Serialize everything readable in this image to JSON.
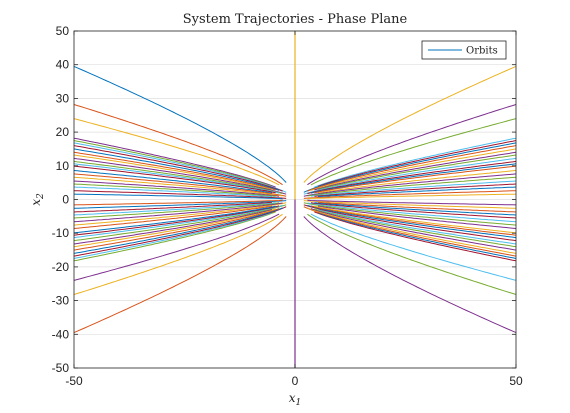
{
  "chart_data": {
    "type": "line",
    "title": "System Trajectories - Phase Plane",
    "xlabel": "x",
    "xlabel_sub": "1",
    "ylabel": "x",
    "ylabel_sub": "2",
    "xlim": [
      -50,
      50
    ],
    "ylim": [
      -50,
      50
    ],
    "xticks": [
      "-50",
      "0",
      "50"
    ],
    "yticks": [
      "-50",
      "-40",
      "-30",
      "-20",
      "-10",
      "0",
      "10",
      "20",
      "30",
      "40",
      "50"
    ],
    "grid": true,
    "legend": {
      "position": "top-right",
      "entries": [
        "Orbits"
      ]
    },
    "colors": [
      "#0072BD",
      "#D95319",
      "#EDB120",
      "#7E2F8E",
      "#77AC30",
      "#4DBEEE",
      "#A2142F"
    ],
    "family": {
      "description_model": "x2 = K * sign * sqrt(|x1|) along each branch",
      "amplitudes": [
        39.5,
        28.2,
        24.0,
        18.2,
        17.5,
        16.8,
        16.0,
        15.0,
        14.0,
        13.2,
        12.2,
        11.3,
        10.6,
        9.9,
        8.6,
        7.6,
        6.6,
        5.5,
        4.6,
        3.7,
        2.6,
        1.6
      ],
      "vertical_lines": [
        {
          "x": 0,
          "y_range": [
            0,
            50
          ],
          "color": "#EDB120"
        },
        {
          "x": 0,
          "y_range": [
            -50,
            0
          ],
          "color": "#7E2F8E"
        }
      ]
    }
  }
}
